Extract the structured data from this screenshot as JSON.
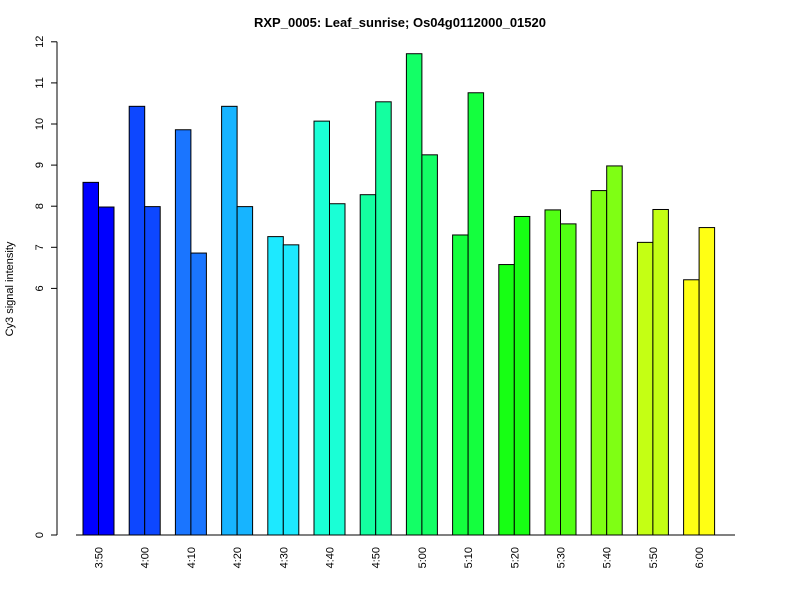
{
  "chart_data": {
    "type": "bar",
    "title": "RXP_0005: Leaf_sunrise; Os04g0112000_01520",
    "xlabel": "",
    "ylabel": "Cy3 signal intensity",
    "yticks": [
      0,
      6,
      7,
      8,
      9,
      10,
      11,
      12
    ],
    "yticks_labels": [
      "0",
      "6",
      "7",
      "8",
      "9",
      "10",
      "11",
      "12"
    ],
    "ylim": [
      0,
      12
    ],
    "grid": false,
    "legend": "none",
    "categories": [
      "3:50",
      "4:00",
      "4:10",
      "4:20",
      "4:30",
      "4:40",
      "4:50",
      "5:00",
      "5:10",
      "5:20",
      "5:30",
      "5:40",
      "5:50",
      "6:00"
    ],
    "series": [
      {
        "values": [
          8.58,
          10.43,
          9.86,
          10.43,
          7.26,
          10.07,
          8.28,
          11.71,
          7.3,
          6.58,
          7.91,
          8.38,
          7.12,
          6.21
        ]
      },
      {
        "values": [
          7.98,
          7.99,
          6.86,
          7.99,
          7.06,
          8.06,
          10.54,
          9.25,
          10.76,
          7.75,
          7.57,
          8.98,
          7.92,
          7.48
        ]
      }
    ],
    "colors": [
      "#0000ff",
      "#0d47ff",
      "#1a75ff",
      "#17b4ff",
      "#1de9ff",
      "#1affd6",
      "#14ffa0",
      "#13ff66",
      "#14ff3e",
      "#17ff14",
      "#52ff14",
      "#7fff14",
      "#c4ff14",
      "#ffff14"
    ]
  }
}
